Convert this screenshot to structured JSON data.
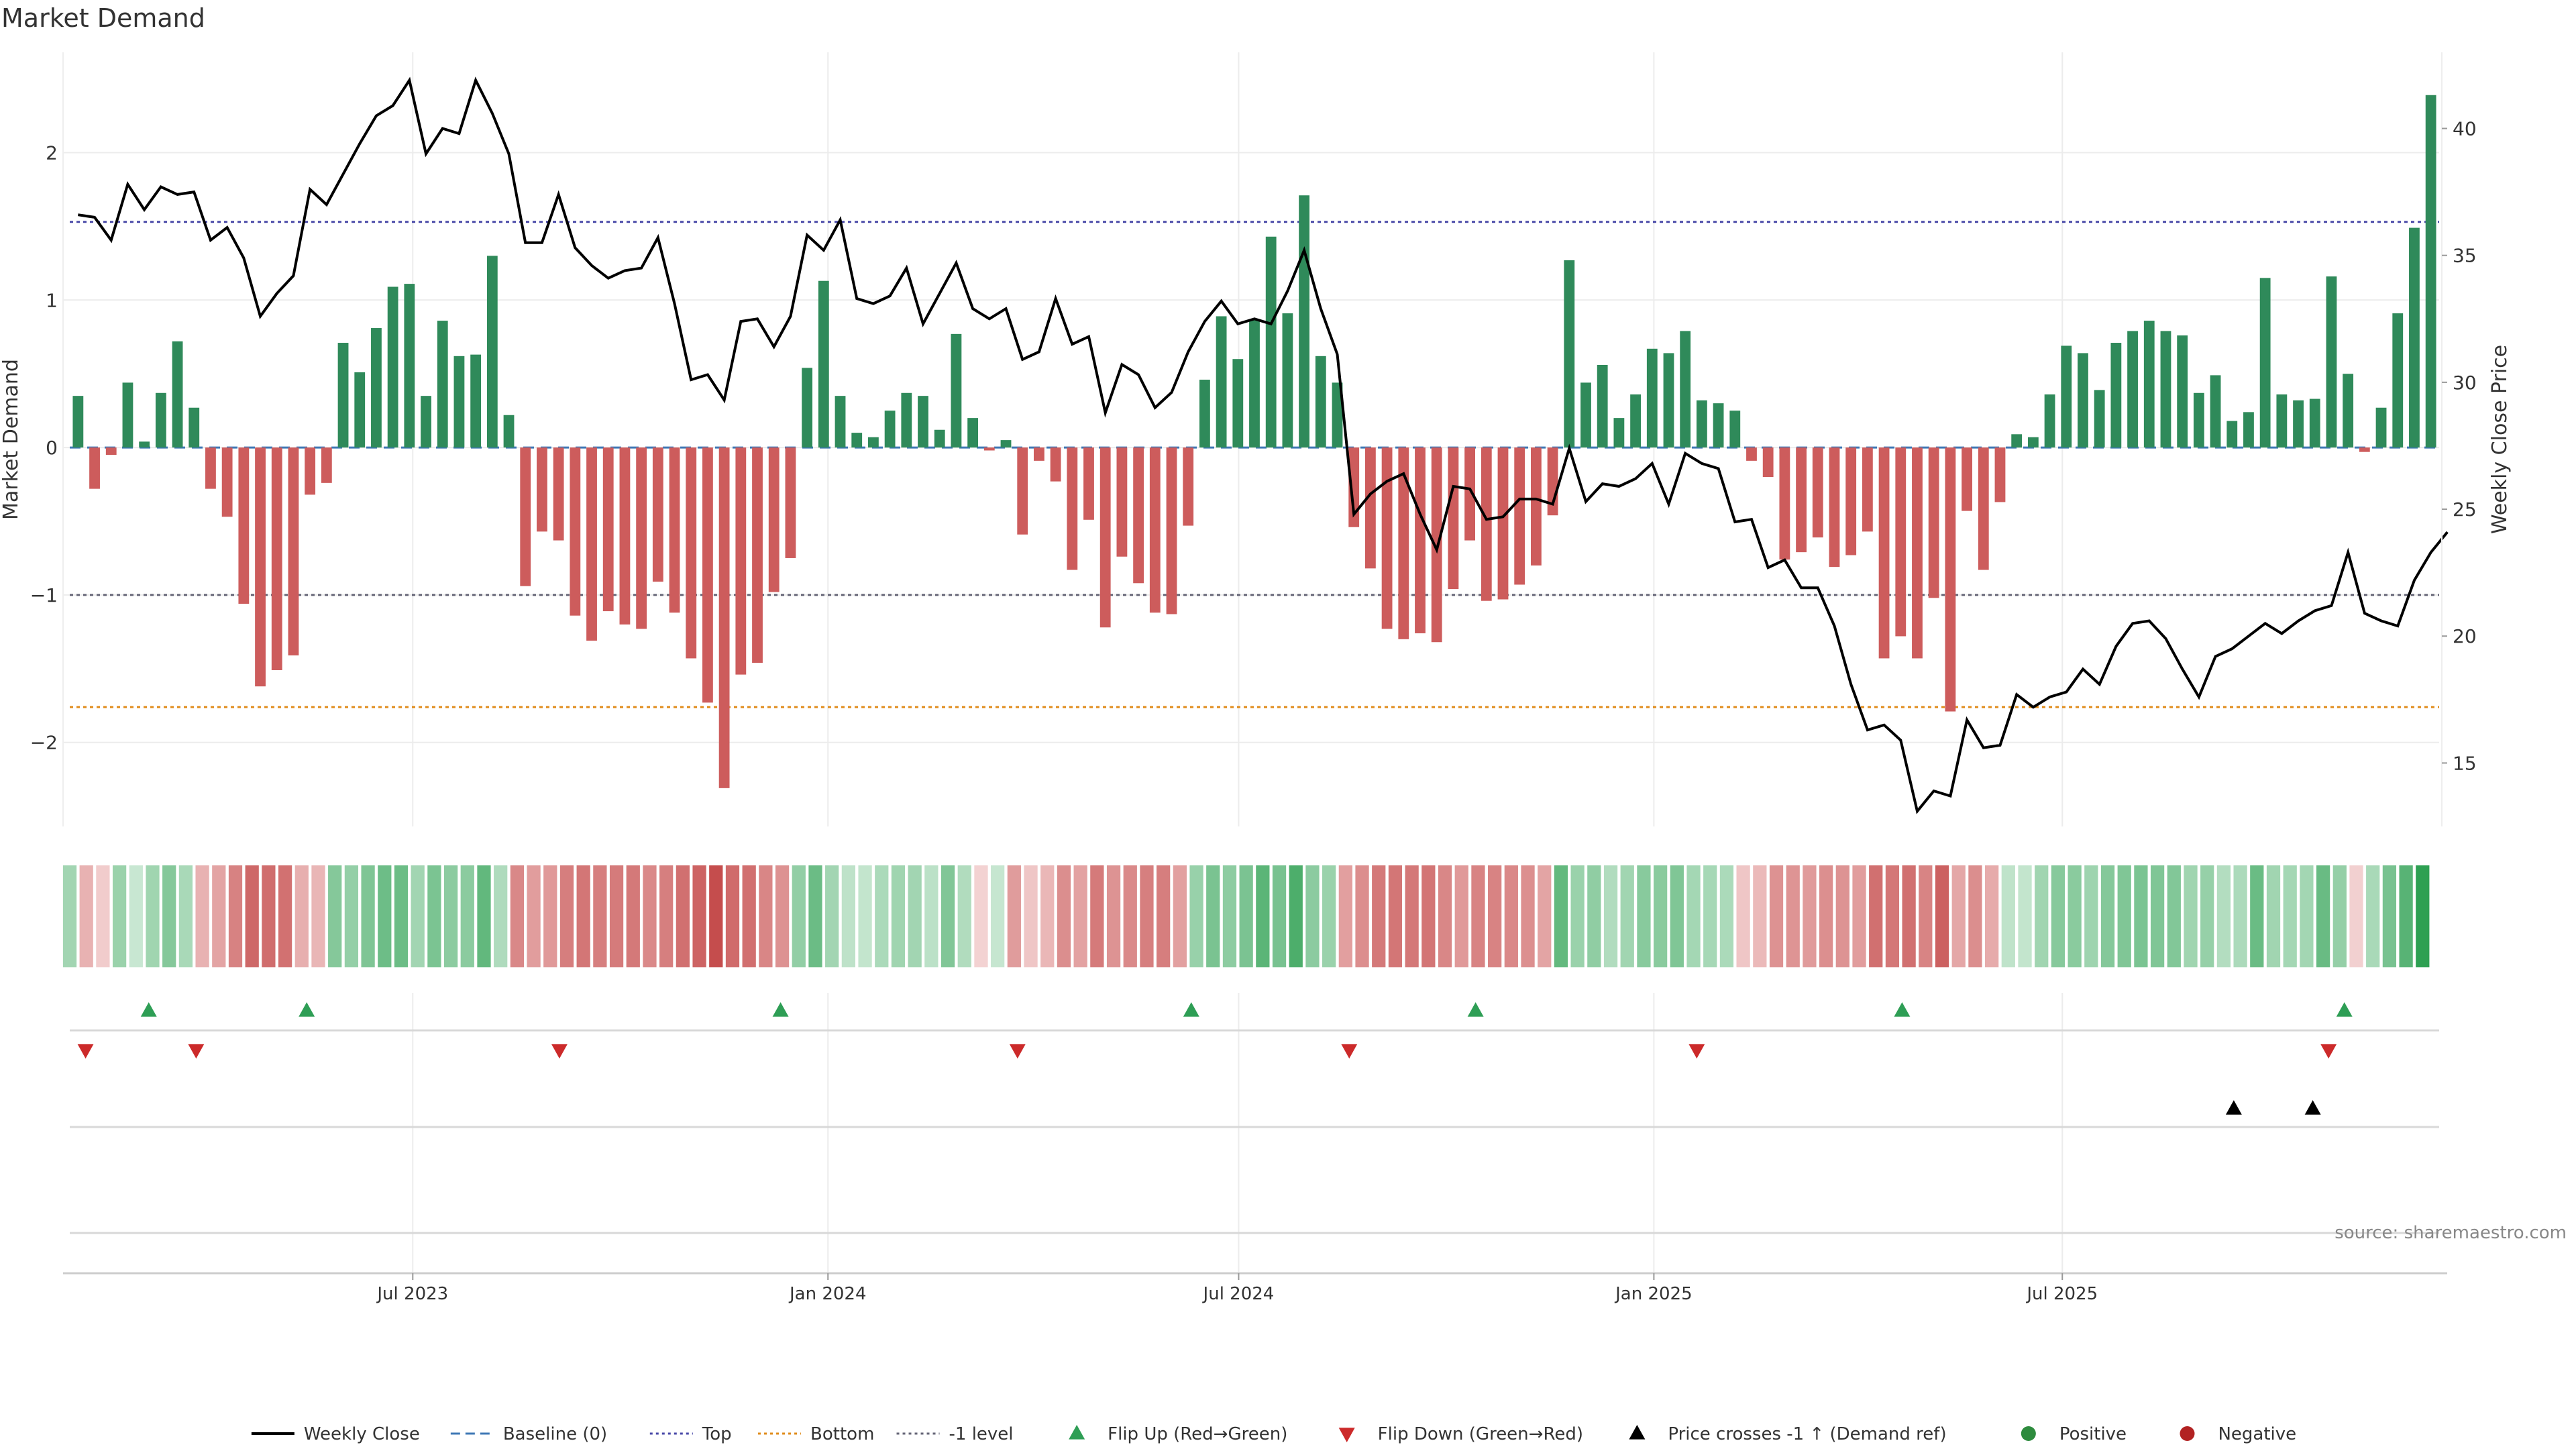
{
  "chart_data": {
    "type": "bar",
    "title": "Market Demand",
    "ylabel": "Market Demand",
    "y2label": "Weekly Close Price",
    "ylim": [
      -2.57,
      2.68
    ],
    "y2lim": [
      12.5,
      43.0
    ],
    "yticks": [
      -2,
      -1,
      0,
      1,
      2
    ],
    "yticklabels": [
      "−2",
      "−1",
      "0",
      "1",
      "2"
    ],
    "y2ticks": [
      15,
      20,
      25,
      30,
      35,
      40
    ],
    "y2ticklabels": [
      "15",
      "20",
      "25",
      "30",
      "35",
      "40"
    ],
    "x_start": "2023-01-30",
    "x_end": "2025-12-15",
    "xticks": [
      "2023-07-01",
      "2024-01-01",
      "2024-07-01",
      "2025-01-01",
      "2025-07-01"
    ],
    "xticklabels": [
      "Jul 2023",
      "Jan 2024",
      "Jul 2024",
      "Jan 2025",
      "Jul 2025"
    ],
    "grid": true,
    "legend_position": "bottom-center",
    "source_text": "source: sharemaestro.com",
    "reference_lines": [
      {
        "name": "Top",
        "value": 1.53,
        "color": "#4a4aa8",
        "style": "dotted"
      },
      {
        "name": "Bottom",
        "value": -1.76,
        "color": "#e08c1c",
        "style": "dotted"
      },
      {
        "name": "-1 level",
        "value": -1.0,
        "color": "#666677",
        "style": "dotted"
      },
      {
        "name": "Baseline (0)",
        "value": 0,
        "color": "#3f78b5",
        "style": "dashed"
      }
    ],
    "demand": [
      0.35,
      -0.28,
      -0.05,
      0.44,
      0.04,
      0.37,
      0.72,
      0.27,
      -0.28,
      -0.47,
      -1.06,
      -1.62,
      -1.51,
      -1.41,
      -0.32,
      -0.24,
      0.71,
      0.51,
      0.81,
      1.09,
      1.11,
      0.35,
      0.86,
      0.62,
      0.63,
      1.3,
      0.22,
      -0.94,
      -0.57,
      -0.63,
      -1.14,
      -1.31,
      -1.11,
      -1.2,
      -1.23,
      -0.91,
      -1.12,
      -1.43,
      -1.73,
      -2.31,
      -1.54,
      -1.46,
      -0.98,
      -0.75,
      0.54,
      1.13,
      0.35,
      0.1,
      0.07,
      0.25,
      0.37,
      0.35,
      0.12,
      0.77,
      0.2,
      -0.02,
      0.05,
      -0.59,
      -0.09,
      -0.23,
      -0.83,
      -0.49,
      -1.22,
      -0.74,
      -0.92,
      -1.12,
      -1.13,
      -0.53,
      0.46,
      0.89,
      0.6,
      0.87,
      1.43,
      0.91,
      1.71,
      0.62,
      0.44,
      -0.54,
      -0.82,
      -1.23,
      -1.3,
      -1.26,
      -1.32,
      -0.96,
      -0.63,
      -1.04,
      -1.03,
      -0.93,
      -0.8,
      -0.46,
      1.27,
      0.44,
      0.56,
      0.2,
      0.36,
      0.67,
      0.64,
      0.79,
      0.32,
      0.3,
      0.25,
      -0.09,
      -0.2,
      -0.76,
      -0.71,
      -0.61,
      -0.81,
      -0.73,
      -0.57,
      -1.43,
      -1.28,
      -1.43,
      -1.02,
      -1.79,
      -0.43,
      -0.83,
      -0.37,
      0.09,
      0.07,
      0.36,
      0.69,
      0.64,
      0.39,
      0.71,
      0.79,
      0.86,
      0.79,
      0.76,
      0.37,
      0.49,
      0.18,
      0.24,
      1.15,
      0.36,
      0.32,
      0.33,
      1.16,
      0.5,
      -0.03,
      0.27,
      0.91,
      1.49,
      2.39
    ],
    "weekly_close": [
      36.6,
      36.5,
      35.6,
      37.8,
      36.8,
      37.7,
      37.4,
      37.5,
      35.6,
      36.1,
      34.9,
      32.6,
      33.5,
      34.2,
      37.6,
      37.0,
      38.2,
      39.4,
      40.5,
      40.9,
      41.9,
      39.0,
      40.0,
      39.8,
      41.9,
      40.6,
      39.0,
      35.5,
      35.5,
      37.4,
      35.3,
      34.6,
      34.1,
      34.4,
      34.5,
      35.7,
      33.1,
      30.1,
      30.3,
      29.3,
      32.4,
      32.5,
      31.4,
      32.6,
      35.8,
      35.2,
      36.4,
      33.3,
      33.1,
      33.4,
      34.5,
      32.3,
      33.5,
      34.7,
      32.9,
      32.5,
      32.9,
      30.9,
      31.2,
      33.3,
      31.5,
      31.8,
      28.8,
      30.7,
      30.3,
      29.0,
      29.6,
      31.2,
      32.4,
      33.2,
      32.3,
      32.5,
      32.3,
      33.6,
      35.2,
      32.9,
      31.1,
      24.8,
      25.6,
      26.1,
      26.4,
      24.8,
      23.4,
      25.9,
      25.8,
      24.6,
      24.7,
      25.4,
      25.4,
      25.2,
      27.4,
      25.3,
      26.0,
      25.9,
      26.2,
      26.8,
      25.2,
      27.2,
      26.8,
      26.6,
      24.5,
      24.6,
      22.7,
      23.0,
      21.9,
      21.9,
      20.4,
      18.1,
      16.3,
      16.5,
      15.9,
      13.1,
      13.9,
      13.7,
      16.7,
      15.6,
      15.7,
      17.7,
      17.2,
      17.6,
      17.8,
      18.7,
      18.1,
      19.6,
      20.5,
      20.6,
      19.9,
      18.7,
      17.6,
      19.2,
      19.5,
      20.0,
      20.5,
      20.1,
      20.6,
      21.0,
      21.2,
      23.3,
      20.9,
      20.6,
      20.4,
      22.2,
      23.3,
      24.1
    ],
    "flip_up": [
      "2023-03-06",
      "2023-05-15",
      "2023-12-11",
      "2024-06-10",
      "2024-10-14",
      "2025-04-21",
      "2025-11-03"
    ],
    "flip_down": [
      "2023-02-06",
      "2023-03-27",
      "2023-09-04",
      "2024-03-25",
      "2024-08-19",
      "2025-01-20",
      "2025-10-27"
    ],
    "price_crosses": [
      "2025-09-15",
      "2025-10-20"
    ],
    "legend": [
      {
        "label": "Weekly Close",
        "kind": "line",
        "color": "#000000"
      },
      {
        "label": "Baseline (0)",
        "kind": "dash",
        "color": "#3f78b5"
      },
      {
        "label": "Top",
        "kind": "dot",
        "color": "#4a4aa8"
      },
      {
        "label": "Bottom",
        "kind": "dot",
        "color": "#e08c1c"
      },
      {
        "label": "-1 level",
        "kind": "dot",
        "color": "#666677"
      },
      {
        "label": "Flip Up (Red→Green)",
        "kind": "tri-up",
        "color": "#2e9e55"
      },
      {
        "label": "Flip Down (Green→Red)",
        "kind": "tri-down",
        "color": "#cc2a2a"
      },
      {
        "label": "Price crosses -1 ↑ (Demand ref)",
        "kind": "tri-up",
        "color": "#000000"
      },
      {
        "label": "Positive",
        "kind": "dot-marker",
        "color": "#2e8b3e"
      },
      {
        "label": "Negative",
        "kind": "dot-marker",
        "color": "#b22222"
      }
    ]
  },
  "colors": {
    "positive_bar": "#2f8a5a",
    "negative_bar": "#cd5c5c",
    "price_line": "#000000",
    "grid": "#ececec",
    "axis_text": "#333333",
    "title_text": "#333333"
  }
}
